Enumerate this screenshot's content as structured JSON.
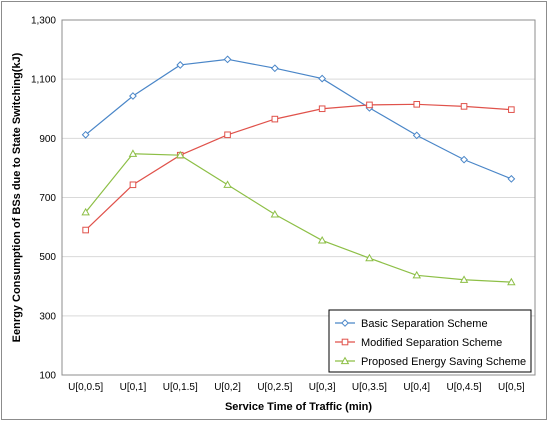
{
  "chart_data": {
    "type": "line",
    "title": "",
    "xlabel": "Service Time of Traffic (min)",
    "ylabel": "Eenrgy Consumption of BSs due to State Switching(kJ)",
    "categories": [
      "U[0,0.5]",
      "U[0,1]",
      "U[0,1.5]",
      "U[0,2]",
      "U[0,2.5]",
      "U[0,3]",
      "U[0,3.5]",
      "U[0,4]",
      "U[0,4.5]",
      "U[0,5]"
    ],
    "ylim": [
      100,
      1300
    ],
    "yticks": [
      100,
      300,
      500,
      700,
      900,
      1100,
      1300
    ],
    "ytick_labels": [
      "100",
      "300",
      "500",
      "700",
      "900",
      "1,100",
      "1,300"
    ],
    "grid": true,
    "legend_position": "bottom-right",
    "series": [
      {
        "name": "Basic Separation Scheme",
        "color": "#4a86c8",
        "marker": "diamond",
        "values": [
          912,
          1043,
          1148,
          1167,
          1137,
          1102,
          1003,
          910,
          828,
          763
        ]
      },
      {
        "name": "Modified Separation Scheme",
        "color": "#e0524b",
        "marker": "square",
        "values": [
          590,
          743,
          843,
          912,
          965,
          1000,
          1013,
          1015,
          1008,
          997
        ]
      },
      {
        "name": "Proposed Energy Saving Scheme",
        "color": "#8dbf46",
        "marker": "triangle",
        "values": [
          650,
          848,
          843,
          743,
          643,
          555,
          495,
          437,
          422,
          414
        ]
      }
    ]
  }
}
